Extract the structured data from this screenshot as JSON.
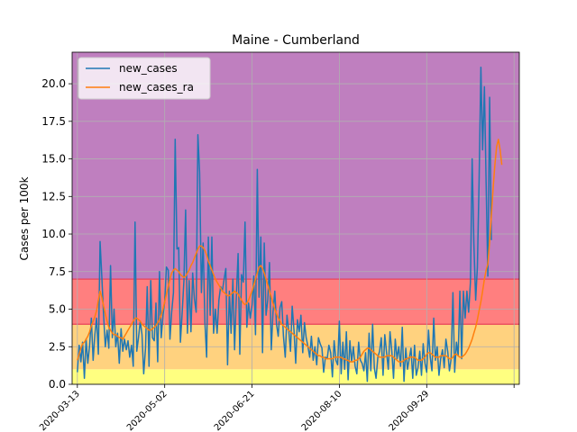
{
  "chart_data": {
    "type": "line",
    "title": "Maine - Cumberland",
    "xlabel": "",
    "ylabel": "Cases per 100k",
    "x_tick_labels": [
      "2020-03-13",
      "2020-05-02",
      "2020-06-21",
      "2020-08-10",
      "2020-09-29"
    ],
    "x_range_days": [
      -3,
      253
    ],
    "ylim": [
      0,
      22.1
    ],
    "y_ticks": [
      0.0,
      2.5,
      5.0,
      7.5,
      10.0,
      12.5,
      15.0,
      17.5,
      20.0
    ],
    "grid": true,
    "legend_position": "top-left",
    "bands": [
      {
        "from": 0,
        "to": 1,
        "color": "#ffff80"
      },
      {
        "from": 1,
        "to": 4,
        "color": "#ffd27f"
      },
      {
        "from": 4,
        "to": 7,
        "color": "#ff7f7f"
      },
      {
        "from": 7,
        "to": 22.1,
        "color": "#bf7fbf"
      }
    ],
    "series": [
      {
        "name": "new_cases",
        "color": "#1f77b4",
        "values": [
          0.8,
          2.6,
          1.5,
          2.8,
          0.4,
          3.0,
          1.4,
          2.6,
          4.4,
          1.6,
          3.3,
          4.4,
          2.0,
          9.5,
          7.2,
          4.6,
          2.5,
          3.6,
          2.4,
          7.9,
          3.1,
          5.0,
          2.5,
          3.4,
          1.4,
          3.7,
          2.2,
          3.0,
          2.3,
          2.9,
          1.8,
          2.6,
          1.2,
          10.8,
          2.2,
          3.1,
          4.2,
          3.3,
          0.7,
          2.4,
          6.5,
          1.2,
          6.9,
          3.1,
          2.9,
          5.4,
          1.5,
          7.5,
          3.1,
          4.6,
          5.5,
          7.8,
          7.6,
          3.0,
          4.8,
          6.1,
          16.3,
          9.0,
          9.1,
          2.8,
          4.8,
          6.9,
          11.6,
          3.4,
          6.9,
          3.5,
          7.4,
          5.7,
          4.8,
          16.6,
          14.1,
          6.1,
          9.4,
          4.1,
          1.8,
          9.8,
          4.6,
          9.8,
          3.4,
          5.0,
          3.4,
          5.6,
          6.5,
          6.2,
          7.0,
          7.7,
          1.3,
          6.2,
          3.4,
          7.0,
          2.3,
          5.8,
          8.7,
          2.0,
          7.3,
          6.8,
          10.8,
          3.8,
          5.4,
          4.4,
          5.3,
          7.2,
          3.3,
          14.3,
          5.8,
          9.8,
          2.1,
          9.4,
          4.6,
          5.6,
          8.1,
          2.3,
          4.8,
          6.2,
          4.0,
          3.2,
          5.1,
          5.5,
          3.2,
          1.8,
          4.6,
          3.6,
          2.2,
          5.2,
          3.6,
          1.4,
          4.3,
          3.5,
          4.6,
          2.1,
          4.1,
          3.1,
          2.5,
          1.8,
          3.2,
          1.6,
          2.5,
          1.3,
          3.1,
          2.7,
          2.4,
          0.8,
          1.8,
          1.7,
          2.6,
          2.1,
          0.5,
          2.9,
          1.6,
          1.3,
          4.2,
          0.7,
          2.8,
          1.0,
          3.5,
          0.3,
          2.9,
          1.5,
          2.5,
          1.2,
          0.7,
          2.8,
          1.6,
          1.4,
          0.9,
          2.1,
          0.2,
          3.4,
          0.9,
          4.0,
          1.1,
          0.4,
          1.8,
          2.2,
          3.1,
          0.6,
          3.3,
          2.1,
          1.0,
          3.5,
          2.2,
          0.4,
          3.0,
          1.7,
          2.5,
          1.2,
          3.8,
          0.2,
          2.4,
          1.0,
          1.7,
          2.4,
          0.4,
          2.6,
          0.6,
          1.1,
          2.2,
          0.6,
          2.7,
          1.4,
          0.8,
          3.6,
          1.8,
          0.9,
          4.4,
          1.6,
          2.5,
          0.6,
          1.7,
          2.3,
          1.1,
          3.0,
          2.2,
          0.9,
          1.7,
          6.1,
          0.8,
          2.8,
          1.9,
          6.2,
          1.7,
          6.2,
          4.4,
          6.2,
          4.8,
          6.8,
          15.0,
          9.4,
          5.6,
          7.8,
          13.5,
          21.1,
          15.6,
          19.8,
          13.4,
          7.2,
          19.1,
          9.6
        ],
        "start_day": 0
      },
      {
        "name": "new_cases_ra",
        "color": "#ff7f0e",
        "values": [
          1.6,
          2.0,
          2.4,
          2.7,
          2.8,
          3.0,
          3.2,
          3.5,
          3.9,
          4.2,
          4.5,
          4.9,
          5.6,
          6.2,
          5.8,
          5.2,
          4.7,
          4.2,
          3.8,
          3.6,
          3.4,
          3.3,
          3.3,
          3.2,
          3.1,
          3.1,
          3.0,
          3.2,
          3.4,
          3.6,
          3.8,
          4.0,
          4.2,
          4.4,
          4.4,
          4.3,
          4.2,
          4.0,
          3.9,
          3.8,
          3.7,
          3.6,
          3.6,
          3.7,
          3.8,
          3.9,
          4.1,
          4.3,
          4.6,
          5.0,
          5.5,
          6.0,
          6.5,
          7.0,
          7.4,
          7.6,
          7.7,
          7.6,
          7.5,
          7.3,
          7.2,
          7.1,
          7.2,
          7.4,
          7.6,
          7.9,
          8.1,
          8.4,
          8.7,
          9.0,
          9.2,
          9.2,
          9.1,
          8.9,
          8.6,
          8.2,
          7.9,
          7.6,
          7.3,
          7.0,
          6.8,
          6.6,
          6.4,
          6.2,
          6.1,
          6.0,
          5.9,
          5.9,
          6.0,
          6.1,
          6.2,
          6.1,
          6.0,
          5.8,
          5.6,
          5.4,
          5.3,
          5.4,
          5.6,
          5.9,
          6.2,
          6.6,
          7.0,
          7.4,
          7.8,
          7.9,
          7.7,
          7.4,
          7.0,
          6.6,
          6.2,
          5.8,
          5.4,
          5.0,
          4.7,
          4.4,
          4.2,
          4.0,
          3.9,
          3.8,
          3.7,
          3.6,
          3.5,
          3.4,
          3.3,
          3.2,
          3.1,
          3.0,
          2.9,
          2.8,
          2.7,
          2.6,
          2.5,
          2.4,
          2.3,
          2.2,
          2.1,
          2.0,
          1.9,
          1.9,
          1.8,
          1.8,
          1.7,
          1.7,
          1.7,
          1.7,
          1.7,
          1.8,
          1.8,
          1.8,
          1.8,
          1.8,
          1.7,
          1.7,
          1.6,
          1.6,
          1.5,
          1.5,
          1.5,
          1.6,
          1.6,
          1.7,
          1.8,
          2.0,
          2.2,
          2.3,
          2.4,
          2.4,
          2.3,
          2.2,
          2.1,
          2.0,
          1.9,
          1.8,
          1.8,
          1.8,
          1.8,
          1.9,
          1.9,
          1.9,
          1.9,
          1.8,
          1.7,
          1.6,
          1.5,
          1.5,
          1.5,
          1.6,
          1.7,
          1.7,
          1.8,
          1.8,
          1.8,
          1.8,
          1.7,
          1.6,
          1.6,
          1.6,
          1.7,
          1.8,
          2.0,
          2.1,
          2.1,
          2.0,
          1.9,
          1.8,
          1.8,
          1.8,
          1.9,
          1.9,
          1.9,
          1.9,
          1.8,
          1.7,
          1.7,
          1.8,
          2.0,
          2.0,
          1.9,
          1.8,
          1.8,
          1.9,
          2.0,
          2.2,
          2.4,
          2.7,
          3.0,
          3.4,
          3.8,
          4.3,
          4.9,
          5.5,
          6.2,
          7.0,
          7.6,
          8.0,
          9.5,
          11.2,
          13.0,
          14.6,
          15.8,
          16.3,
          15.6,
          14.6
        ],
        "start_day": 0
      }
    ]
  }
}
